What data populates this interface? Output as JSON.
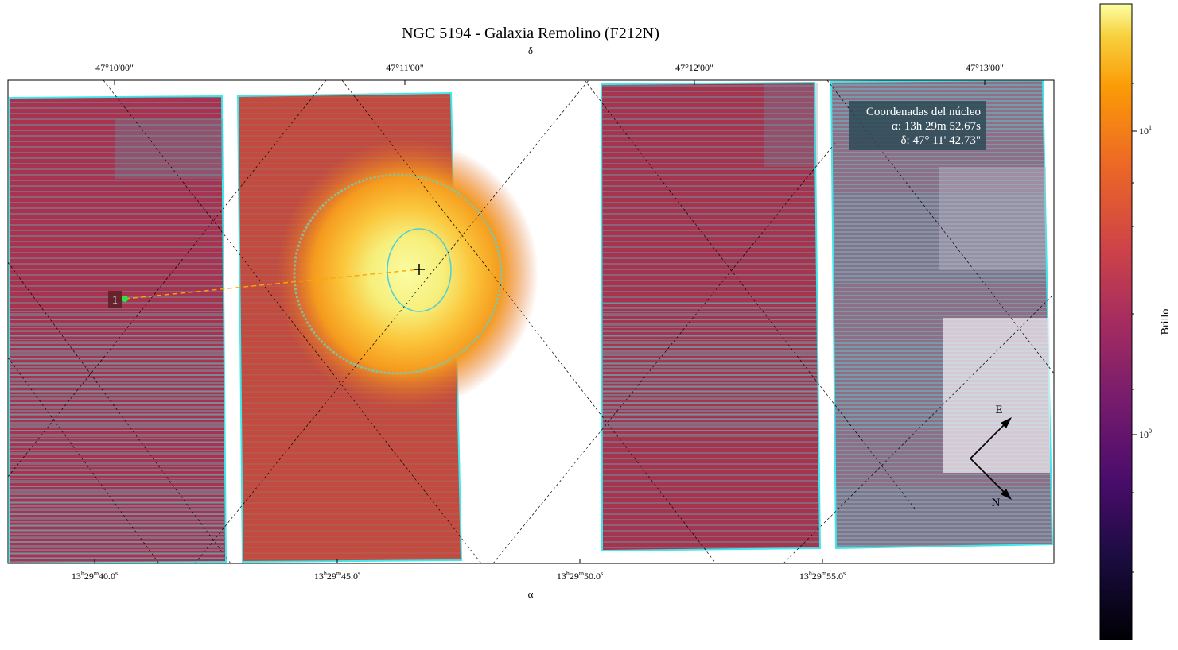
{
  "chart_data": {
    "type": "heatmap",
    "title": "NGC 5194 - Galaxia Remolino (F212N)",
    "projection": "WCS (RA/Dec) sky image, log color scale",
    "colormap": "inferno",
    "scale": "log",
    "xlabel": "α",
    "ylabel": "δ",
    "ra_ticks": [
      {
        "h": "13",
        "m": "29",
        "s": "40.0"
      },
      {
        "h": "13",
        "m": "29",
        "s": "45.0"
      },
      {
        "h": "13",
        "m": "29",
        "s": "50.0"
      },
      {
        "h": "13",
        "m": "29",
        "s": "55.0"
      }
    ],
    "dec_ticks": [
      "47°10'00\"",
      "47°11'00\"",
      "47°12'00\"",
      "47°13'00\""
    ],
    "colorbar": {
      "label": "Brillo",
      "ticks": [
        {
          "base": "10",
          "exp": "0",
          "value": 1
        },
        {
          "base": "10",
          "exp": "1",
          "value": 10
        }
      ],
      "range_approx": [
        0.18,
        28
      ]
    },
    "nucleus": {
      "label": "Coordenadas del núcleo",
      "ra_text": "α: 13h 29m 52.67s",
      "dec_text": "δ: 47° 11' 42.73\""
    },
    "markers": [
      {
        "label": "1"
      }
    ],
    "compass": {
      "east": "E",
      "north": "N"
    },
    "grid": true,
    "colors": {
      "contour": "#4fd0d6",
      "detector_edge": "#3fe8ec",
      "nucleus_core": "#f4f58e",
      "marker_line": "#ffa500",
      "marker_point": "#33dd44"
    }
  }
}
